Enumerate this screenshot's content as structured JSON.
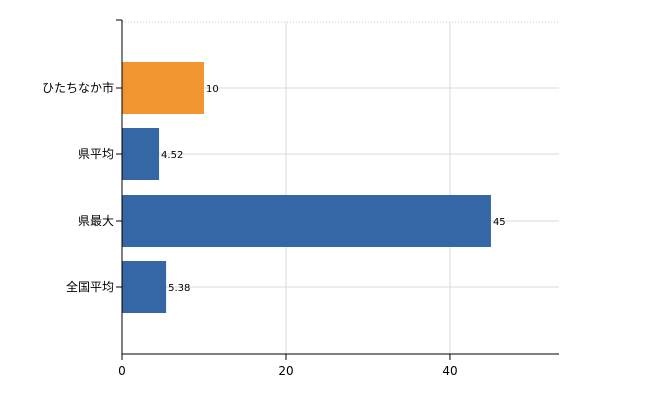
{
  "chart_data": {
    "type": "bar",
    "orientation": "horizontal",
    "categories": [
      "ひたちなか市",
      "県平均",
      "県最大",
      "全国平均"
    ],
    "values": [
      10,
      4.52,
      45,
      5.38
    ],
    "data_labels": [
      "10",
      "4.52",
      "45",
      "5.38"
    ],
    "bar_colors": [
      "#f0952f",
      "#3566a6",
      "#3566a6",
      "#3566a6"
    ],
    "xlim": [
      0,
      53.3
    ],
    "x_ticks": [
      0,
      20,
      40
    ],
    "x_tick_labels": [
      "0",
      "20",
      "40"
    ],
    "grid": true,
    "legend": "none",
    "title": "",
    "xlabel": "",
    "ylabel": ""
  }
}
